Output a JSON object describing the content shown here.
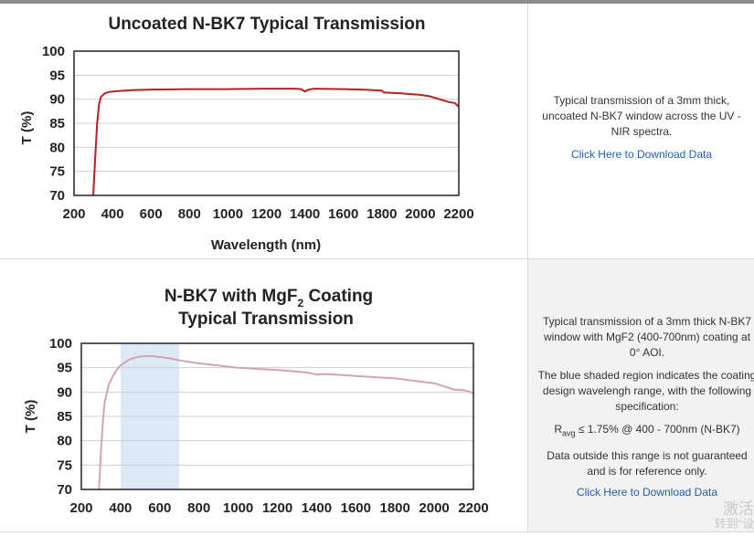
{
  "chart_data": [
    {
      "type": "line",
      "title": "Uncoated N-BK7 Typical Transmission",
      "xlabel": "Wavelength (nm)",
      "ylabel": "T (%)",
      "xlim": [
        200,
        2200
      ],
      "ylim": [
        70,
        100
      ],
      "xticks": [
        200,
        400,
        600,
        800,
        1000,
        1200,
        1400,
        1600,
        1800,
        2000,
        2200
      ],
      "yticks": [
        70,
        75,
        80,
        85,
        90,
        95,
        100
      ],
      "grid": "horizontal",
      "line_color": "#b52025",
      "series": [
        {
          "x": [
            300,
            310,
            320,
            330,
            340,
            360,
            380,
            400,
            500,
            600,
            800,
            1000,
            1200,
            1350,
            1380,
            1400,
            1420,
            1450,
            1600,
            1700,
            1800,
            1810,
            1900,
            2000,
            2050,
            2100,
            2150,
            2180,
            2200
          ],
          "y": [
            70,
            78,
            85,
            89,
            90.5,
            91.2,
            91.5,
            91.6,
            91.9,
            92.0,
            92.1,
            92.1,
            92.2,
            92.2,
            92.1,
            91.6,
            92.0,
            92.2,
            92.1,
            92.0,
            91.8,
            91.4,
            91.2,
            90.9,
            90.6,
            90.0,
            89.4,
            89.2,
            88.4
          ]
        }
      ]
    },
    {
      "type": "line",
      "title_parts": [
        "N-BK7 with MgF",
        "2",
        " Coating"
      ],
      "title_line2": "Typical Transmission",
      "xlabel": "",
      "ylabel": "T (%)",
      "xlim": [
        200,
        2200
      ],
      "ylim": [
        70,
        100
      ],
      "xticks": [
        200,
        400,
        600,
        800,
        1000,
        1200,
        1400,
        1600,
        1800,
        2000,
        2200
      ],
      "yticks": [
        70,
        75,
        80,
        85,
        90,
        95,
        100
      ],
      "grid": "horizontal",
      "line_color": "#d4a3b0",
      "shaded_region": {
        "x": [
          400,
          700
        ],
        "color": "#dde9f5"
      },
      "series": [
        {
          "x": [
            290,
            300,
            310,
            320,
            340,
            360,
            380,
            400,
            450,
            500,
            550,
            600,
            650,
            700,
            800,
            1000,
            1200,
            1300,
            1350,
            1400,
            1450,
            1600,
            1800,
            2000,
            2050,
            2100,
            2150,
            2200
          ],
          "y": [
            70,
            78,
            84,
            88,
            91.5,
            93.2,
            94.5,
            95.5,
            96.8,
            97.3,
            97.4,
            97.2,
            96.9,
            96.5,
            95.9,
            95.0,
            94.5,
            94.2,
            94.0,
            93.6,
            93.7,
            93.3,
            92.8,
            91.8,
            91.2,
            90.5,
            90.4,
            89.8
          ]
        }
      ]
    }
  ],
  "desc1": {
    "text": "Typical transmission of a 3mm thick, uncoated N-BK7 window across the UV - NIR spectra.",
    "link": "Click Here to Download Data"
  },
  "desc2": {
    "p1": "Typical transmission of a 3mm thick N-BK7 window with MgF2 (400-700nm) coating at 0° AOI.",
    "p2": "The blue shaded region indicates the coating design wavelengh range, with the following specification:",
    "spec_r": "R",
    "spec_sub": "avg",
    "spec_rest": " ≤ 1.75% @ 400 - 700nm (N-BK7)",
    "p4": "Data outside this range is not guaranteed and is for reference only.",
    "link": "Click Here to Download Data"
  },
  "watermark": {
    "line1": "激活",
    "line2": "转到“设"
  }
}
